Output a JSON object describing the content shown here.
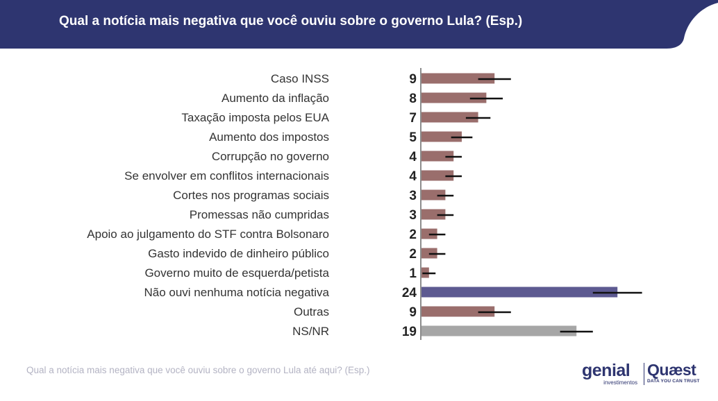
{
  "header": {
    "title": "Qual a notícia mais negativa que você ouviu sobre o governo Lula? (Esp.)"
  },
  "footnote": "Qual a notícia mais negativa que você ouviu sobre o governo Lula até aqui? (Esp.)",
  "logos": {
    "genial": "genial",
    "genial_sub": "investimentos",
    "quaest": "Quæst",
    "quaest_sub": "DATA YOU CAN TRUST"
  },
  "colors": {
    "header_bg": "#2e3570",
    "bar_default": "#9a6e6c",
    "bar_highlight": "#5d5a91",
    "bar_gray": "#a6a6a6",
    "error_bar": "#111111"
  },
  "chart_data": {
    "type": "bar",
    "orientation": "horizontal",
    "categories": [
      "Caso INSS",
      "Aumento da inflação",
      "Taxação imposta pelos EUA",
      "Aumento dos impostos",
      "Corrupção no governo",
      "Se envolver em conflitos internacionais",
      "Cortes nos programas sociais",
      "Promessas não cumpridas",
      "Apoio ao julgamento do STF contra Bolsonaro",
      "Gasto indevido de dinheiro público",
      "Governo muito de esquerda/petista",
      "Não ouvi nenhuma notícia negativa",
      "Outras",
      "NS/NR"
    ],
    "values": [
      9,
      8,
      7,
      5,
      4,
      4,
      3,
      3,
      2,
      2,
      1,
      24,
      9,
      19
    ],
    "error_margin": [
      2,
      2,
      1.5,
      1.3,
      1,
      1,
      1,
      1,
      1,
      1,
      0.8,
      3,
      2,
      2
    ],
    "bar_colors": [
      "default",
      "default",
      "default",
      "default",
      "default",
      "default",
      "default",
      "default",
      "default",
      "default",
      "default",
      "highlight",
      "default",
      "gray"
    ],
    "xlim": [
      0,
      30
    ],
    "grid": false,
    "data_labels": true
  }
}
